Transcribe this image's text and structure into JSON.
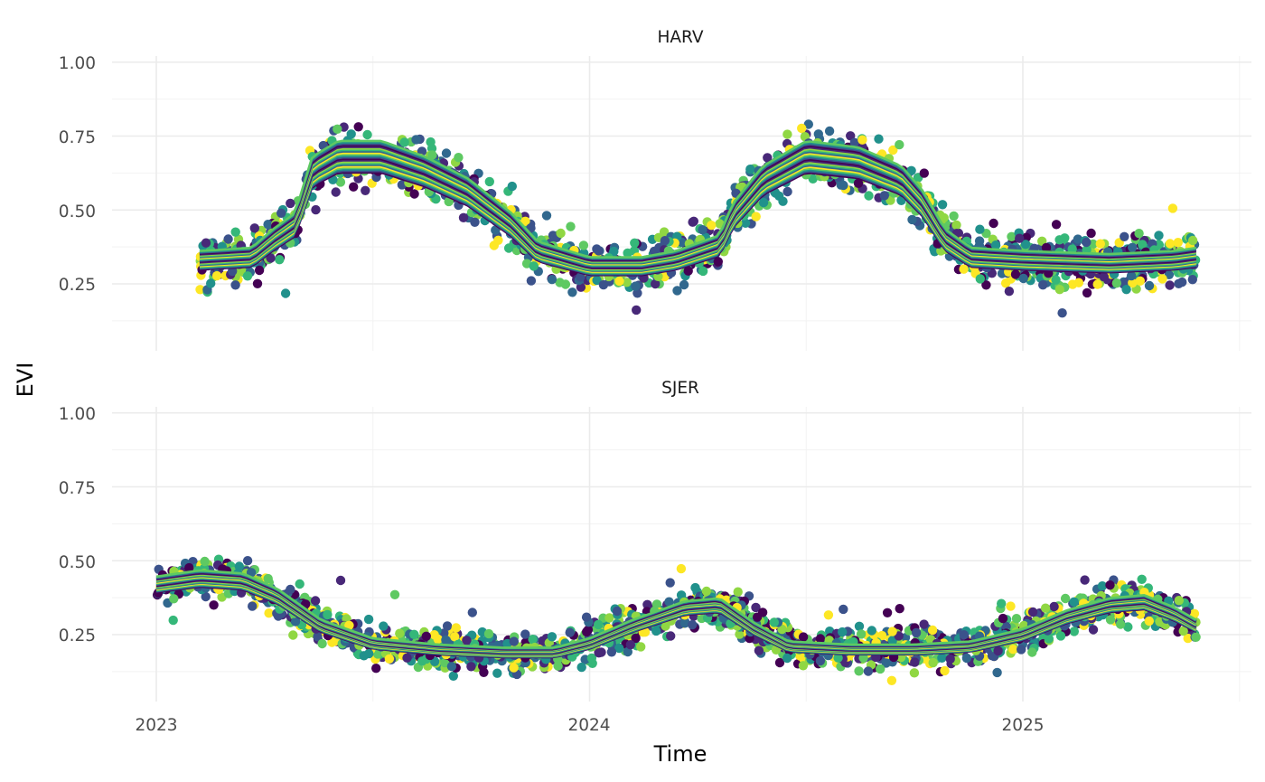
{
  "chart_data": {
    "type": "line",
    "description_note": "Faceted EVI time series (many ensemble lines + observation points) per NEON site",
    "xlabel": "Time",
    "ylabel": "EVI",
    "x_ticks": [
      "2023",
      "2024",
      "2025"
    ],
    "x_range": [
      2022.9,
      2025.5
    ],
    "y_ticks": [
      "0.25",
      "0.50",
      "0.75",
      "1.00"
    ],
    "palette": [
      "#440154",
      "#3b528b",
      "#21918c",
      "#5ec962",
      "#fde725",
      "#31688e",
      "#35b779",
      "#90d743",
      "#482878"
    ],
    "panels": [
      {
        "title": "HARV",
        "ylim": [
          0.05,
          1.02
        ],
        "x_start": 2023.1,
        "x_end": 2025.4,
        "mean_curve": [
          [
            2023.1,
            0.33
          ],
          [
            2023.22,
            0.34
          ],
          [
            2023.27,
            0.4
          ],
          [
            2023.32,
            0.45
          ],
          [
            2023.36,
            0.63
          ],
          [
            2023.42,
            0.68
          ],
          [
            2023.52,
            0.68
          ],
          [
            2023.62,
            0.63
          ],
          [
            2023.72,
            0.56
          ],
          [
            2023.82,
            0.45
          ],
          [
            2023.88,
            0.36
          ],
          [
            2024.0,
            0.31
          ],
          [
            2024.12,
            0.31
          ],
          [
            2024.2,
            0.33
          ],
          [
            2024.3,
            0.38
          ],
          [
            2024.33,
            0.48
          ],
          [
            2024.4,
            0.6
          ],
          [
            2024.5,
            0.68
          ],
          [
            2024.62,
            0.66
          ],
          [
            2024.72,
            0.6
          ],
          [
            2024.77,
            0.52
          ],
          [
            2024.82,
            0.4
          ],
          [
            2024.88,
            0.34
          ],
          [
            2025.0,
            0.33
          ],
          [
            2025.2,
            0.32
          ],
          [
            2025.35,
            0.33
          ],
          [
            2025.4,
            0.34
          ]
        ],
        "band_spread": 0.07,
        "series_count": 22
      },
      {
        "title": "SJER",
        "ylim": [
          0.05,
          1.02
        ],
        "x_start": 2023.0,
        "x_end": 2025.4,
        "mean_curve": [
          [
            2023.0,
            0.42
          ],
          [
            2023.1,
            0.44
          ],
          [
            2023.2,
            0.43
          ],
          [
            2023.28,
            0.38
          ],
          [
            2023.38,
            0.28
          ],
          [
            2023.5,
            0.22
          ],
          [
            2023.65,
            0.2
          ],
          [
            2023.8,
            0.19
          ],
          [
            2023.92,
            0.19
          ],
          [
            2024.0,
            0.22
          ],
          [
            2024.1,
            0.28
          ],
          [
            2024.22,
            0.34
          ],
          [
            2024.3,
            0.35
          ],
          [
            2024.38,
            0.27
          ],
          [
            2024.46,
            0.21
          ],
          [
            2024.6,
            0.2
          ],
          [
            2024.75,
            0.2
          ],
          [
            2024.88,
            0.21
          ],
          [
            2025.0,
            0.25
          ],
          [
            2025.1,
            0.31
          ],
          [
            2025.2,
            0.35
          ],
          [
            2025.28,
            0.36
          ],
          [
            2025.35,
            0.32
          ],
          [
            2025.4,
            0.28
          ]
        ],
        "band_spread": 0.05,
        "series_count": 22
      }
    ]
  }
}
